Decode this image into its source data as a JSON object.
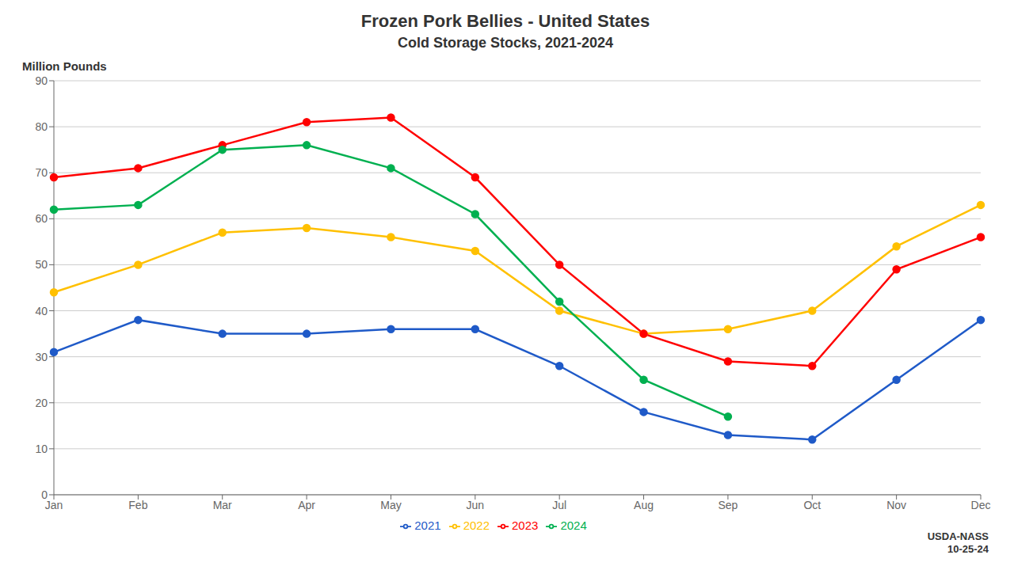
{
  "chart_data": {
    "type": "line",
    "title": "Frozen Pork Bellies - United States",
    "subtitle": "Cold Storage Stocks, 2021-2024",
    "y_label": "Million Pounds",
    "annotation": "USDA-NASS\n10-25-24",
    "categories": [
      "Jan",
      "Feb",
      "Mar",
      "Apr",
      "May",
      "Jun",
      "Jul",
      "Aug",
      "Sep",
      "Oct",
      "Nov",
      "Dec"
    ],
    "series": [
      {
        "name": "2021",
        "color": "#1F5AC8",
        "values": [
          31,
          38,
          35,
          35,
          36,
          36,
          28,
          18,
          13,
          12,
          25,
          38
        ]
      },
      {
        "name": "2022",
        "color": "#FFC000",
        "values": [
          44,
          50,
          57,
          58,
          56,
          53,
          40,
          35,
          36,
          40,
          54,
          63
        ]
      },
      {
        "name": "2023",
        "color": "#FF0000",
        "values": [
          69,
          71,
          76,
          81,
          82,
          69,
          50,
          35,
          29,
          28,
          49,
          56
        ]
      },
      {
        "name": "2024",
        "color": "#00B050",
        "values": [
          62,
          63,
          75,
          76,
          71,
          61,
          42,
          25,
          17,
          null,
          null,
          null
        ]
      }
    ],
    "ylim": [
      0,
      90
    ],
    "yticks": [
      0,
      10,
      20,
      30,
      40,
      50,
      60,
      70,
      80,
      90
    ],
    "grid": true,
    "legend": "bottom",
    "marker": "circle"
  }
}
